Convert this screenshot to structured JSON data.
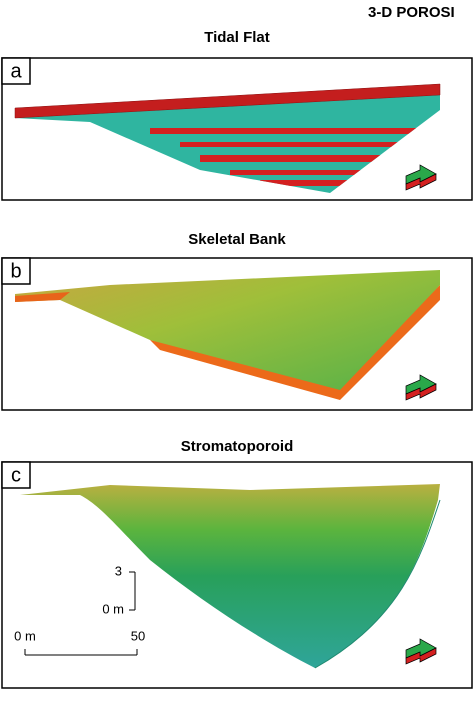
{
  "header": {
    "title": "3-D POROSI"
  },
  "panels": [
    {
      "letter": "a",
      "title": "Tidal Flat"
    },
    {
      "letter": "b",
      "title": "Skeletal Bank"
    },
    {
      "letter": "c",
      "title": "Stromatoporoid"
    }
  ],
  "scale": {
    "vertical_top": "3",
    "vertical_bottom": "0 m",
    "horizontal_left": "0 m",
    "horizontal_right": "50"
  }
}
